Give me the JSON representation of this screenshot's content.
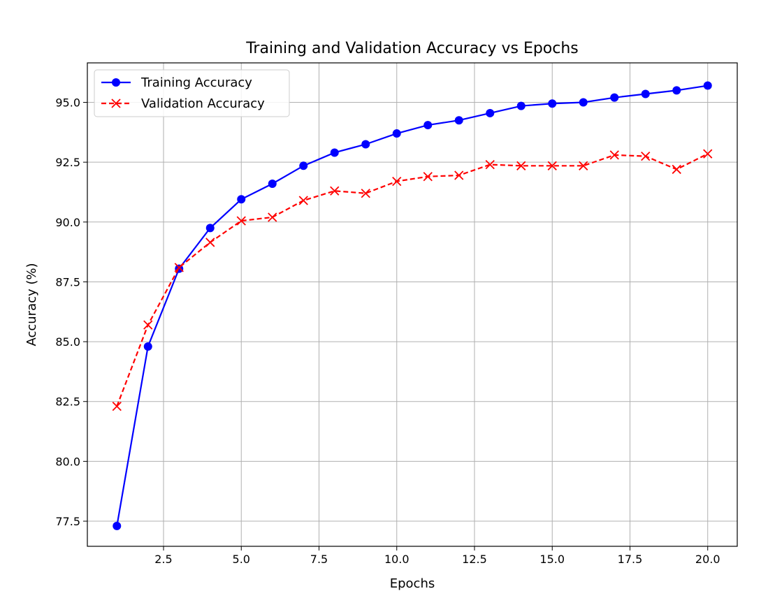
{
  "chart_data": {
    "type": "line",
    "title": "Training and Validation Accuracy vs Epochs",
    "xlabel": "Epochs",
    "ylabel": "Accuracy (%)",
    "xlim": [
      0.05,
      20.95
    ],
    "ylim": [
      76.45,
      96.65
    ],
    "xticks": [
      2.5,
      5.0,
      7.5,
      10.0,
      12.5,
      15.0,
      17.5,
      20.0
    ],
    "xtick_labels": [
      "2.5",
      "5.0",
      "7.5",
      "10.0",
      "12.5",
      "15.0",
      "17.5",
      "20.0"
    ],
    "yticks": [
      77.5,
      80.0,
      82.5,
      85.0,
      87.5,
      90.0,
      92.5,
      95.0
    ],
    "ytick_labels": [
      "77.5",
      "80.0",
      "82.5",
      "85.0",
      "87.5",
      "90.0",
      "92.5",
      "95.0"
    ],
    "grid": true,
    "legend_position": "top-left",
    "x": [
      1,
      2,
      3,
      4,
      5,
      6,
      7,
      8,
      9,
      10,
      11,
      12,
      13,
      14,
      15,
      16,
      17,
      18,
      19,
      20
    ],
    "series": [
      {
        "name": "Training Accuracy",
        "color": "#0000ff",
        "line_style": "solid",
        "marker": "circle",
        "values": [
          77.3,
          84.8,
          88.05,
          89.75,
          90.95,
          91.6,
          92.35,
          92.9,
          93.25,
          93.7,
          94.05,
          94.25,
          94.55,
          94.85,
          94.95,
          95.0,
          95.2,
          95.35,
          95.5,
          95.7
        ]
      },
      {
        "name": "Validation Accuracy",
        "color": "#ff0000",
        "line_style": "dashed",
        "marker": "x",
        "values": [
          82.3,
          85.7,
          88.1,
          89.15,
          90.05,
          90.2,
          90.9,
          91.3,
          91.2,
          91.7,
          91.9,
          91.95,
          92.4,
          92.35,
          92.35,
          92.35,
          92.8,
          92.75,
          92.2,
          92.85
        ]
      }
    ]
  }
}
